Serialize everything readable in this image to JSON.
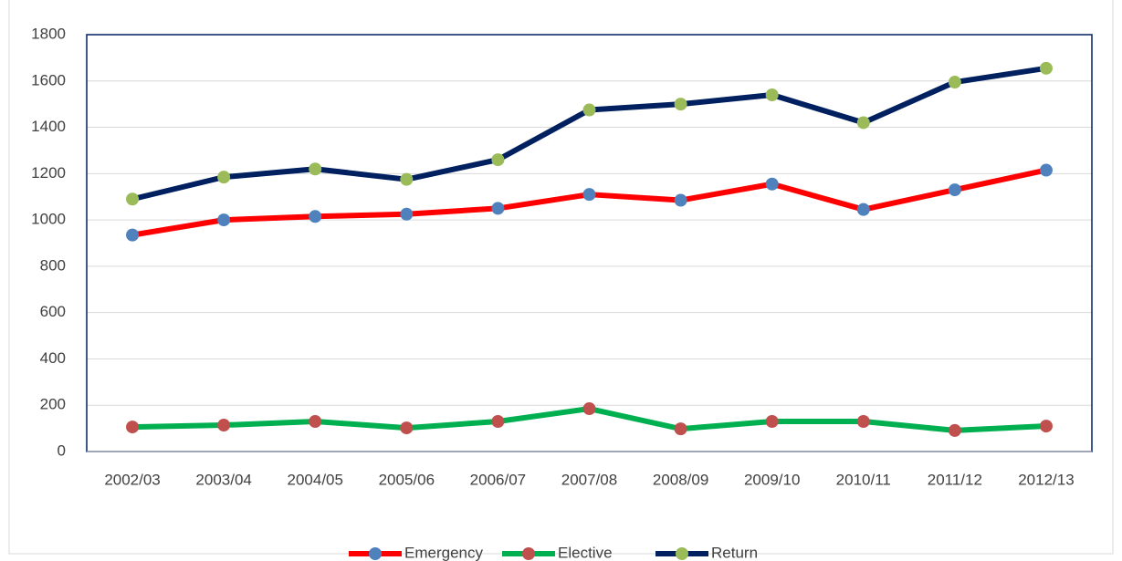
{
  "chart_data": {
    "type": "line",
    "categories": [
      "2002/03",
      "2003/04",
      "2004/05",
      "2005/06",
      "2006/07",
      "2007/08",
      "2008/09",
      "2009/10",
      "2010/11",
      "2011/12",
      "2012/13"
    ],
    "series": [
      {
        "name": "Emergency",
        "color": "#ff0000",
        "marker_color": "#4f81bd",
        "values": [
          935,
          1000,
          1015,
          1025,
          1050,
          1110,
          1085,
          1155,
          1045,
          1130,
          1215
        ]
      },
      {
        "name": "Elective",
        "color": "#00b050",
        "marker_color": "#c0504d",
        "values": [
          106,
          114,
          130,
          102,
          130,
          185,
          98,
          130,
          130,
          91,
          110
        ]
      },
      {
        "name": "Return",
        "color": "#002060",
        "marker_color": "#9bbb59",
        "values": [
          1090,
          1185,
          1220,
          1175,
          1260,
          1475,
          1500,
          1540,
          1420,
          1595,
          1655
        ]
      }
    ],
    "ylim": [
      0,
      1800
    ],
    "yticks": [
      0,
      200,
      400,
      600,
      800,
      1000,
      1200,
      1400,
      1600,
      1800
    ],
    "grid": true,
    "legend": "bottom"
  }
}
